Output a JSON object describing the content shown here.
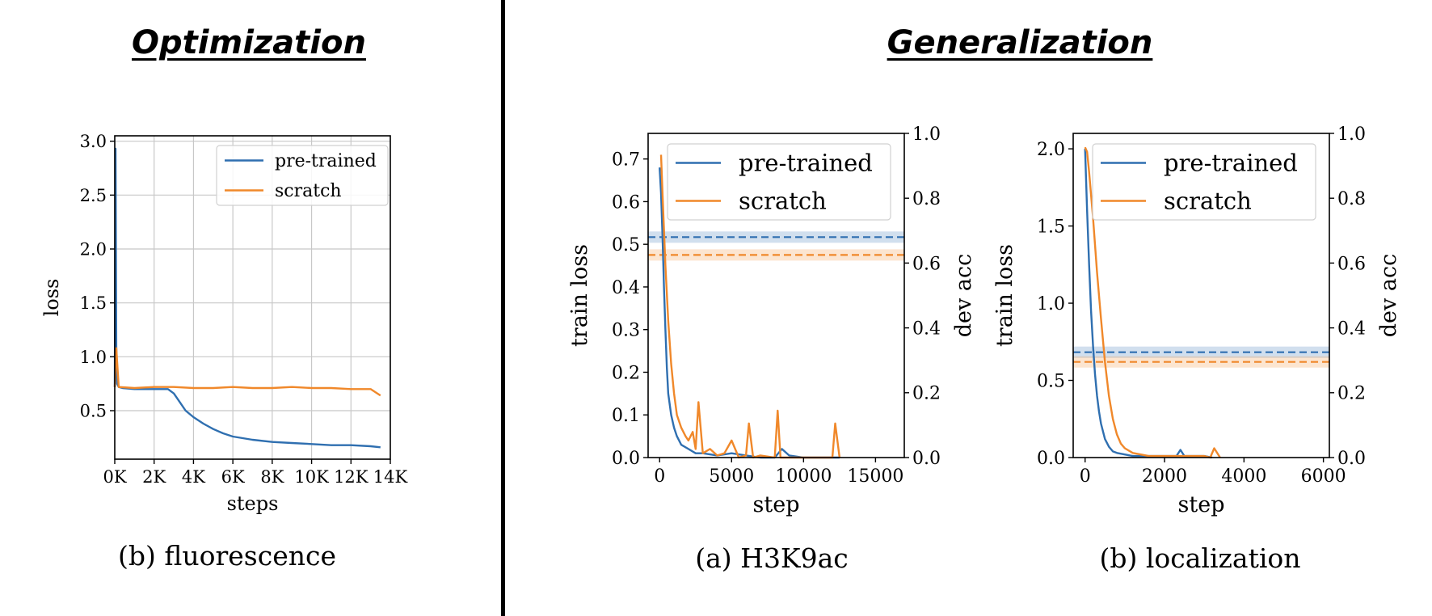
{
  "headings": {
    "optimization": "Optimization",
    "generalization": "Generalization"
  },
  "colors": {
    "pretrained": "#2f6fb0",
    "scratch": "#f0882a"
  },
  "chart_data": [
    {
      "id": "fluorescence",
      "type": "line",
      "caption": "(b) fluorescence",
      "xlabel": "steps",
      "ylabel": "loss",
      "xlim": [
        0,
        14000
      ],
      "ylim": [
        0.05,
        3.05
      ],
      "xticks": [
        0,
        2000,
        4000,
        6000,
        8000,
        10000,
        12000,
        14000
      ],
      "xtick_labels": [
        "0K",
        "2K",
        "4K",
        "6K",
        "8K",
        "10K",
        "12K",
        "14K"
      ],
      "yticks": [
        0.5,
        1.0,
        1.5,
        2.0,
        2.5,
        3.0
      ],
      "ytick_labels": [
        "0.5",
        "1.0",
        "1.5",
        "2.0",
        "2.5",
        "3.0"
      ],
      "grid": true,
      "legend": [
        "pre-trained",
        "scratch"
      ],
      "legend_position": "top-right",
      "series": [
        {
          "name": "pre-trained",
          "x": [
            0,
            40,
            80,
            120,
            200,
            400,
            1000,
            2000,
            2700,
            3000,
            3300,
            3600,
            4000,
            4500,
            5000,
            5500,
            6000,
            7000,
            8000,
            9000,
            10000,
            11000,
            12000,
            13000,
            13500
          ],
          "y": [
            0.72,
            2.93,
            1.1,
            0.75,
            0.72,
            0.71,
            0.7,
            0.7,
            0.7,
            0.66,
            0.58,
            0.5,
            0.44,
            0.38,
            0.33,
            0.29,
            0.26,
            0.23,
            0.21,
            0.2,
            0.19,
            0.18,
            0.18,
            0.17,
            0.16
          ]
        },
        {
          "name": "scratch",
          "x": [
            0,
            80,
            200,
            1000,
            2000,
            3000,
            4000,
            5000,
            6000,
            7000,
            8000,
            9000,
            10000,
            11000,
            12000,
            13000,
            13500
          ],
          "y": [
            0.72,
            1.08,
            0.72,
            0.71,
            0.72,
            0.72,
            0.71,
            0.71,
            0.72,
            0.71,
            0.71,
            0.72,
            0.71,
            0.71,
            0.7,
            0.7,
            0.64
          ]
        }
      ]
    },
    {
      "id": "h3k9ac",
      "type": "line",
      "caption": "(a) H3K9ac",
      "xlabel": "step",
      "ylabel": "train loss",
      "y2label": "dev acc",
      "xlim": [
        -800,
        17000
      ],
      "ylim": [
        0,
        0.76
      ],
      "y2lim": [
        0,
        1.0
      ],
      "xticks": [
        0,
        5000,
        10000,
        15000
      ],
      "xtick_labels": [
        "0",
        "5000",
        "10000",
        "15000"
      ],
      "yticks": [
        0.0,
        0.1,
        0.2,
        0.3,
        0.4,
        0.5,
        0.6,
        0.7
      ],
      "ytick_labels": [
        "0.0",
        "0.1",
        "0.2",
        "0.3",
        "0.4",
        "0.5",
        "0.6",
        "0.7"
      ],
      "y2ticks": [
        0.0,
        0.2,
        0.4,
        0.6,
        0.8,
        1.0
      ],
      "y2tick_labels": [
        "0.0",
        "0.2",
        "0.4",
        "0.6",
        "0.8",
        "1.0"
      ],
      "grid": false,
      "legend": [
        "pre-trained",
        "scratch"
      ],
      "legend_position": "top-left",
      "dev_acc": {
        "pre-trained": 0.68,
        "scratch": 0.625
      },
      "series": [
        {
          "name": "pre-trained",
          "x": [
            0,
            100,
            200,
            300,
            400,
            500,
            600,
            800,
            1000,
            1200,
            1500,
            2000,
            2500,
            3000,
            4000,
            5000,
            6000,
            7000,
            8000,
            8500,
            9000,
            10000,
            11000,
            12000,
            12500
          ],
          "y": [
            0.68,
            0.62,
            0.52,
            0.4,
            0.3,
            0.21,
            0.15,
            0.1,
            0.07,
            0.05,
            0.03,
            0.02,
            0.01,
            0.01,
            0.005,
            0.01,
            0.005,
            0.0,
            0.0,
            0.02,
            0.005,
            0.0,
            0.0,
            0.0,
            0.0
          ]
        },
        {
          "name": "scratch",
          "x": [
            100,
            200,
            400,
            600,
            800,
            1000,
            1200,
            1500,
            1800,
            2000,
            2300,
            2500,
            2700,
            3000,
            3500,
            4000,
            4500,
            5000,
            5500,
            6000,
            6200,
            6500,
            7000,
            8000,
            8200,
            8400,
            9000,
            10000,
            10500,
            11000,
            11500,
            12000,
            12200,
            12500
          ],
          "y": [
            0.71,
            0.62,
            0.45,
            0.32,
            0.22,
            0.15,
            0.1,
            0.07,
            0.05,
            0.04,
            0.06,
            0.02,
            0.13,
            0.01,
            0.02,
            0.005,
            0.01,
            0.04,
            0.0,
            0.005,
            0.08,
            0.0,
            0.005,
            0.0,
            0.11,
            0.0,
            0.0,
            0.0,
            0.0,
            0.0,
            0.0,
            0.0,
            0.08,
            0.0
          ]
        }
      ]
    },
    {
      "id": "localization",
      "type": "line",
      "caption": "(b) localization",
      "xlabel": "step",
      "ylabel": "train loss",
      "y2label": "dev acc",
      "xlim": [
        -300,
        6150
      ],
      "ylim": [
        0,
        2.1
      ],
      "y2lim": [
        0,
        1.0
      ],
      "xticks": [
        0,
        2000,
        4000,
        6000
      ],
      "xtick_labels": [
        "0",
        "2000",
        "4000",
        "6000"
      ],
      "yticks": [
        0.0,
        0.5,
        1.0,
        1.5,
        2.0
      ],
      "ytick_labels": [
        "0.0",
        "0.5",
        "1.0",
        "1.5",
        "2.0"
      ],
      "y2ticks": [
        0.0,
        0.2,
        0.4,
        0.6,
        0.8,
        1.0
      ],
      "y2tick_labels": [
        "0.0",
        "0.2",
        "0.4",
        "0.6",
        "0.8",
        "1.0"
      ],
      "grid": false,
      "legend": [
        "pre-trained",
        "scratch"
      ],
      "legend_position": "top-left",
      "dev_acc": {
        "pre-trained": 0.325,
        "scratch": 0.295
      },
      "series": [
        {
          "name": "pre-trained",
          "x": [
            0,
            50,
            100,
            150,
            200,
            250,
            300,
            350,
            400,
            500,
            600,
            700,
            800,
            1000,
            1200,
            1500,
            2000,
            2300,
            2400,
            2500,
            3000,
            3200
          ],
          "y": [
            2.0,
            1.6,
            1.25,
            0.95,
            0.72,
            0.54,
            0.4,
            0.3,
            0.22,
            0.12,
            0.07,
            0.04,
            0.03,
            0.02,
            0.01,
            0.01,
            0.01,
            0.01,
            0.05,
            0.01,
            0.01,
            0.0
          ]
        },
        {
          "name": "scratch",
          "x": [
            0,
            50,
            100,
            200,
            300,
            400,
            500,
            600,
            700,
            800,
            900,
            1000,
            1200,
            1400,
            1600,
            2000,
            2500,
            3000,
            3150,
            3250,
            3400
          ],
          "y": [
            2.01,
            1.98,
            1.85,
            1.55,
            1.2,
            0.9,
            0.62,
            0.4,
            0.25,
            0.15,
            0.09,
            0.06,
            0.03,
            0.02,
            0.01,
            0.01,
            0.01,
            0.01,
            0.0,
            0.06,
            0.0
          ]
        }
      ]
    }
  ]
}
